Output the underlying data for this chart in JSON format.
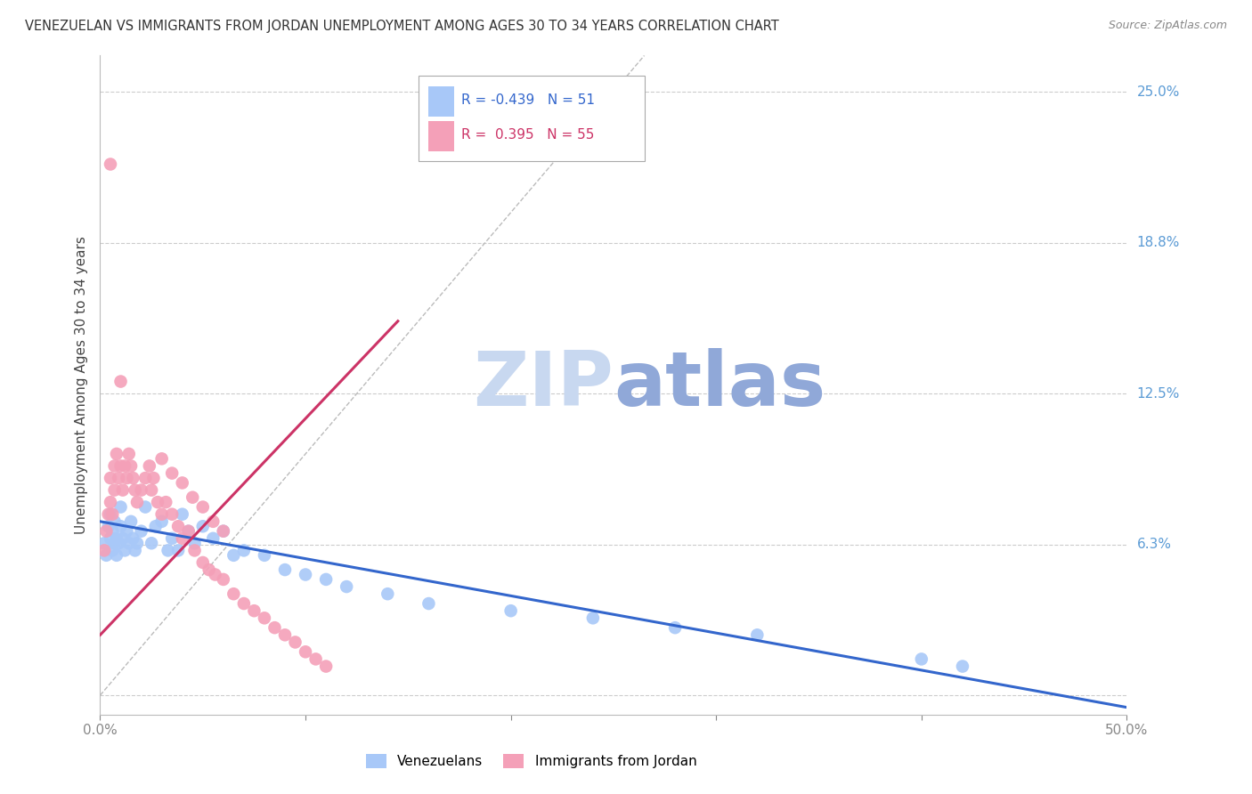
{
  "title": "VENEZUELAN VS IMMIGRANTS FROM JORDAN UNEMPLOYMENT AMONG AGES 30 TO 34 YEARS CORRELATION CHART",
  "source": "Source: ZipAtlas.com",
  "ylabel_left": "Unemployment Among Ages 30 to 34 years",
  "legend_venezuelans": "Venezuelans",
  "legend_jordan": "Immigrants from Jordan",
  "R_venezuelans": -0.439,
  "N_venezuelans": 51,
  "R_jordan": 0.395,
  "N_jordan": 55,
  "color_venezuelan": "#A8C8F8",
  "color_jordan": "#F4A0B8",
  "color_trend_venezuelan": "#3366CC",
  "color_trend_jordan": "#CC3366",
  "color_diagonal": "#BBBBBB",
  "watermark_zip": "#C8D8F0",
  "watermark_atlas": "#90A8D8",
  "xmin": 0.0,
  "xmax": 0.5,
  "ymin": -0.008,
  "ymax": 0.265,
  "venezuelan_scatter_x": [
    0.002,
    0.003,
    0.004,
    0.005,
    0.005,
    0.006,
    0.006,
    0.007,
    0.007,
    0.008,
    0.008,
    0.009,
    0.01,
    0.01,
    0.011,
    0.012,
    0.013,
    0.014,
    0.015,
    0.016,
    0.017,
    0.018,
    0.02,
    0.022,
    0.025,
    0.027,
    0.03,
    0.033,
    0.035,
    0.038,
    0.04,
    0.043,
    0.046,
    0.05,
    0.055,
    0.06,
    0.065,
    0.07,
    0.08,
    0.09,
    0.1,
    0.11,
    0.12,
    0.14,
    0.16,
    0.2,
    0.24,
    0.28,
    0.32,
    0.4,
    0.42
  ],
  "venezuelan_scatter_y": [
    0.063,
    0.058,
    0.07,
    0.065,
    0.075,
    0.06,
    0.068,
    0.063,
    0.072,
    0.058,
    0.065,
    0.063,
    0.07,
    0.078,
    0.065,
    0.06,
    0.068,
    0.063,
    0.072,
    0.065,
    0.06,
    0.063,
    0.068,
    0.078,
    0.063,
    0.07,
    0.072,
    0.06,
    0.065,
    0.06,
    0.075,
    0.068,
    0.063,
    0.07,
    0.065,
    0.068,
    0.058,
    0.06,
    0.058,
    0.052,
    0.05,
    0.048,
    0.045,
    0.042,
    0.038,
    0.035,
    0.032,
    0.028,
    0.025,
    0.015,
    0.012
  ],
  "jordan_scatter_x": [
    0.002,
    0.003,
    0.004,
    0.005,
    0.005,
    0.006,
    0.007,
    0.007,
    0.008,
    0.009,
    0.01,
    0.011,
    0.012,
    0.013,
    0.014,
    0.015,
    0.016,
    0.017,
    0.018,
    0.02,
    0.022,
    0.024,
    0.025,
    0.026,
    0.028,
    0.03,
    0.032,
    0.035,
    0.038,
    0.04,
    0.043,
    0.046,
    0.05,
    0.053,
    0.056,
    0.06,
    0.065,
    0.07,
    0.075,
    0.08,
    0.085,
    0.09,
    0.095,
    0.1,
    0.105,
    0.11,
    0.03,
    0.035,
    0.04,
    0.045,
    0.05,
    0.055,
    0.06,
    0.005,
    0.01
  ],
  "jordan_scatter_y": [
    0.06,
    0.068,
    0.075,
    0.08,
    0.09,
    0.075,
    0.085,
    0.095,
    0.1,
    0.09,
    0.095,
    0.085,
    0.095,
    0.09,
    0.1,
    0.095,
    0.09,
    0.085,
    0.08,
    0.085,
    0.09,
    0.095,
    0.085,
    0.09,
    0.08,
    0.075,
    0.08,
    0.075,
    0.07,
    0.065,
    0.068,
    0.06,
    0.055,
    0.052,
    0.05,
    0.048,
    0.042,
    0.038,
    0.035,
    0.032,
    0.028,
    0.025,
    0.022,
    0.018,
    0.015,
    0.012,
    0.098,
    0.092,
    0.088,
    0.082,
    0.078,
    0.072,
    0.068,
    0.22,
    0.13
  ],
  "ven_trend_x": [
    0.0,
    0.5
  ],
  "ven_trend_y": [
    0.072,
    -0.005
  ],
  "jor_trend_x": [
    0.0,
    0.145
  ],
  "jor_trend_y": [
    0.025,
    0.155
  ]
}
